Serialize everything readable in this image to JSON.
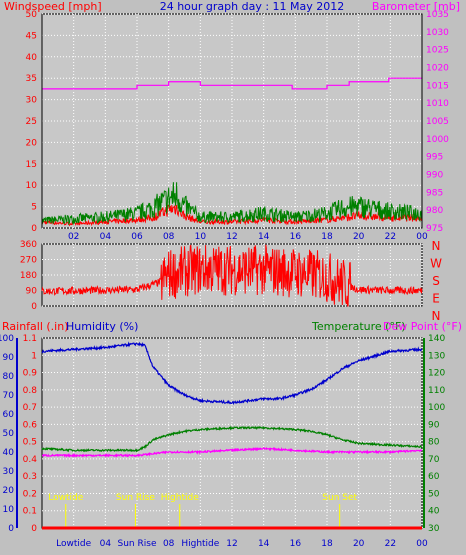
{
  "colors": {
    "background": "#c0c0c0",
    "plot_bg": "#c8c8c8",
    "grid": "#ffffff",
    "axis": "#000000",
    "wind": "#ff0000",
    "gust": "#008000",
    "barometer": "#ff00ff",
    "direction": "#ff0000",
    "rain": "#ff0000",
    "humidity": "#0000cc",
    "temperature": "#008000",
    "dewpoint": "#ff00ff",
    "tide_marker": "#ffff00"
  },
  "chart_data": [
    {
      "type": "line",
      "title": "24 hour graph day : 11 May 2012",
      "left_label": "Windspeed [mph]",
      "right_label": "Barometer [mb]",
      "x_ticks": [
        "02",
        "04",
        "06",
        "08",
        "10",
        "12",
        "14",
        "16",
        "18",
        "20",
        "22",
        "00"
      ],
      "ylim_left": [
        0,
        50
      ],
      "y_ticks_left": [
        "0",
        "5",
        "10",
        "15",
        "20",
        "25",
        "30",
        "35",
        "40",
        "45",
        "50"
      ],
      "ylim_right": [
        975,
        1035
      ],
      "y_ticks_right": [
        "975",
        "980",
        "985",
        "990",
        "995",
        "1000",
        "1005",
        "1010",
        "1015",
        "1020",
        "1025",
        "1030",
        "1035"
      ],
      "series": [
        {
          "type": "step",
          "values_hours": [
            0,
            5.5,
            6,
            7.8,
            8,
            10,
            15.8,
            18,
            19.4,
            21.9,
            24
          ],
          "values": [
            1014,
            1014,
            1015,
            1015,
            1016,
            1015,
            1014,
            1015,
            1016,
            1017,
            1017
          ]
        },
        {
          "values_hours": [
            0,
            2,
            4,
            6,
            7,
            8,
            8.5,
            9,
            10,
            12,
            14,
            16,
            18,
            19,
            20,
            22,
            24
          ],
          "values": [
            1.5,
            1,
            1.5,
            2,
            2.5,
            4.5,
            5,
            3,
            1.5,
            1.5,
            2,
            1.5,
            2,
            2.5,
            3,
            2.5,
            2.5
          ]
        },
        {
          "values_hours": [
            0,
            2,
            4,
            6,
            7,
            8,
            8.5,
            9,
            10,
            12,
            14,
            16,
            18,
            19,
            20,
            22,
            24
          ],
          "values": [
            2,
            2.5,
            3,
            4,
            5.5,
            8,
            9,
            6,
            3,
            3,
            4,
            3,
            4,
            5.5,
            6,
            4.5,
            4
          ]
        }
      ]
    },
    {
      "type": "line",
      "y_ticks": [
        "0",
        "90",
        "180",
        "270",
        "360"
      ],
      "ylim": [
        0,
        360
      ],
      "compass_labels": [
        "N",
        "W",
        "S",
        "E",
        "N"
      ],
      "x_ticks": [
        "02",
        "04",
        "06",
        "08",
        "10",
        "12",
        "14",
        "16",
        "18",
        "20",
        "22",
        "00"
      ],
      "series": [
        {
          "values_hours": [
            0,
            3,
            6,
            7.5,
            8,
            10,
            12,
            14,
            16,
            18,
            19,
            20,
            22,
            24
          ],
          "values": [
            85,
            90,
            95,
            140,
            185,
            215,
            210,
            210,
            195,
            170,
            130,
            95,
            90,
            90
          ]
        }
      ]
    },
    {
      "type": "line",
      "rain_label": "Rainfall (.in)",
      "humidity_label": "Humidity (%)",
      "temp_label": "Temperature (°F)",
      "dew_label": "Dew Point (°F)",
      "x_ticks": [
        "Lowtide",
        "04",
        "Sun Rise",
        "08",
        "Hightide",
        "12",
        "14",
        "16",
        "18",
        "20",
        "22",
        "00"
      ],
      "rain_ticks": [
        "0",
        "0.1",
        "0.2",
        "0.3",
        "0.4",
        "0.5",
        "0.6",
        "0.7",
        "0.8",
        "0.9",
        "1",
        "1.1"
      ],
      "ylim_rain": [
        0,
        1.1
      ],
      "humidity_ticks": [
        "0",
        "10",
        "20",
        "30",
        "40",
        "50",
        "60",
        "70",
        "80",
        "90",
        "100"
      ],
      "ylim_humidity": [
        0,
        100
      ],
      "temp_ticks": [
        "30",
        "40",
        "50",
        "60",
        "70",
        "80",
        "90",
        "100",
        "110",
        "120",
        "130",
        "140"
      ],
      "ylim_temp": [
        30,
        140
      ],
      "markers": [
        {
          "hour": 1.5,
          "label": "Lowtide"
        },
        {
          "hour": 5.9,
          "label": "Sun Rise"
        },
        {
          "hour": 8.7,
          "label": "Hightide"
        },
        {
          "hour": 18.8,
          "label": "Sun Set"
        }
      ],
      "series": [
        {
          "name": "Humidity (%)",
          "values_hours": [
            0,
            2,
            4,
            6,
            6.5,
            7,
            8,
            9,
            10,
            12,
            14,
            15,
            16,
            17,
            18,
            19,
            20,
            22,
            24
          ],
          "values": [
            93,
            94,
            95,
            97,
            96,
            85,
            75,
            70,
            67,
            66,
            68,
            68,
            70,
            73,
            78,
            84,
            88,
            93,
            94
          ]
        },
        {
          "name": "Temperature (°F)",
          "values_hours": [
            0,
            2,
            4,
            6,
            6.5,
            7,
            8,
            9,
            10,
            12,
            14,
            16,
            17,
            18,
            19,
            20,
            22,
            24
          ],
          "values": [
            76,
            75,
            75,
            75,
            77,
            81,
            84,
            86,
            87,
            88,
            88,
            87,
            86,
            84,
            81,
            79,
            78,
            77
          ]
        },
        {
          "name": "Dew Point (°F)",
          "values_hours": [
            0,
            3,
            6,
            7,
            8,
            10,
            12,
            14,
            16,
            18,
            20,
            22,
            24
          ],
          "values": [
            72,
            72,
            72,
            73,
            74,
            74,
            75,
            76,
            75,
            74,
            74,
            74,
            75
          ]
        },
        {
          "name": "Rainfall (.in)",
          "values_hours": [
            0,
            24
          ],
          "values": [
            0,
            0
          ]
        }
      ]
    }
  ]
}
